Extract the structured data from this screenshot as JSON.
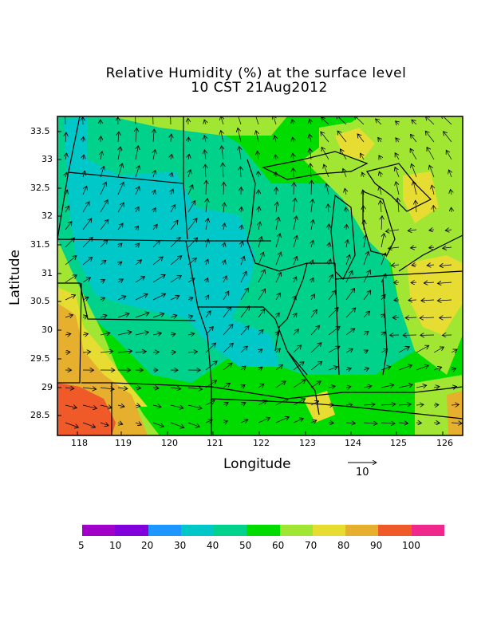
{
  "title": {
    "line1": "Relative Humidity (%) at the surface level",
    "line2": "10 CST 21Aug2012"
  },
  "axes": {
    "xlabel": "Longitude",
    "ylabel": "Latitude",
    "xticks": [
      "118",
      "119",
      "120",
      "121",
      "122",
      "123",
      "124",
      "125",
      "126"
    ],
    "yticks": [
      "33.5",
      "33",
      "32.5",
      "32",
      "31.5",
      "31",
      "30.5",
      "30",
      "29.5",
      "29",
      "28.5"
    ]
  },
  "reference_vector": {
    "label": "10"
  },
  "colorbar": {
    "labels": [
      "5",
      "10",
      "20",
      "30",
      "40",
      "50",
      "60",
      "70",
      "80",
      "90",
      "100"
    ],
    "colors": [
      "#a000c8",
      "#8200dc",
      "#1e96ff",
      "#00c8c8",
      "#00d28c",
      "#00dc00",
      "#a0e632",
      "#e6dc32",
      "#e6af2d",
      "#f05a28",
      "#f0288c"
    ]
  },
  "colors": {
    "rh_30_40": "#00c8c8",
    "rh_40_50": "#00d28c",
    "rh_50_60": "#00dc00",
    "rh_60_70": "#a0e632",
    "rh_70_80": "#e6dc32",
    "rh_80_90": "#e6af2d",
    "rh_90_100": "#f05a28"
  }
}
